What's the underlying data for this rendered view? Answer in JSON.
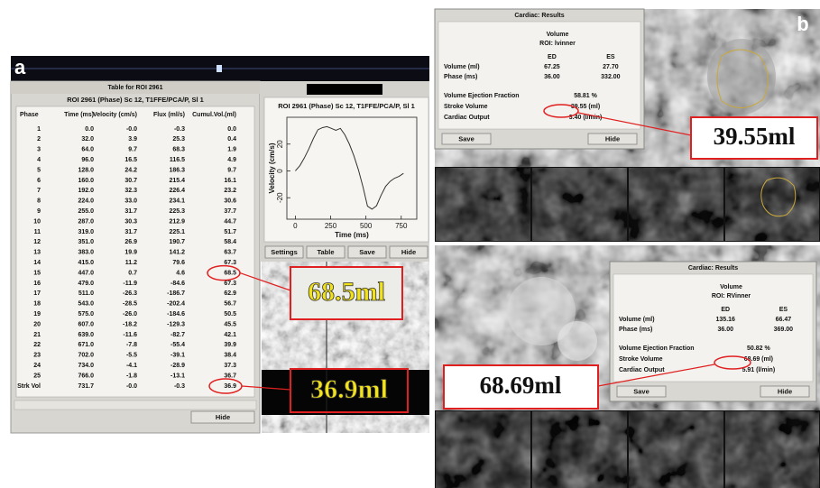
{
  "panel_a": {
    "label": "a",
    "table": {
      "title": "Table for ROI 2961",
      "subtitle": "ROI 2961 (Phase) Sc 12, T1FFE/PCA/P, Sl 1",
      "columns": [
        "Phase",
        "Time (ms)",
        "Velocity (cm/s)",
        "Flux (ml/s)",
        "Cumul.Vol.(ml)"
      ],
      "rows": [
        [
          "1",
          "0.0",
          "-0.0",
          "-0.3",
          "0.0"
        ],
        [
          "2",
          "32.0",
          "3.9",
          "25.3",
          "0.4"
        ],
        [
          "3",
          "64.0",
          "9.7",
          "68.3",
          "1.9"
        ],
        [
          "4",
          "96.0",
          "16.5",
          "116.5",
          "4.9"
        ],
        [
          "5",
          "128.0",
          "24.2",
          "186.3",
          "9.7"
        ],
        [
          "6",
          "160.0",
          "30.7",
          "215.4",
          "16.1"
        ],
        [
          "7",
          "192.0",
          "32.3",
          "226.4",
          "23.2"
        ],
        [
          "8",
          "224.0",
          "33.0",
          "234.1",
          "30.6"
        ],
        [
          "9",
          "255.0",
          "31.7",
          "225.3",
          "37.7"
        ],
        [
          "10",
          "287.0",
          "30.3",
          "212.9",
          "44.7"
        ],
        [
          "11",
          "319.0",
          "31.7",
          "225.1",
          "51.7"
        ],
        [
          "12",
          "351.0",
          "26.9",
          "190.7",
          "58.4"
        ],
        [
          "13",
          "383.0",
          "19.9",
          "141.2",
          "63.7"
        ],
        [
          "14",
          "415.0",
          "11.2",
          "79.6",
          "67.3"
        ],
        [
          "15",
          "447.0",
          "0.7",
          "4.6",
          "68.5"
        ],
        [
          "16",
          "479.0",
          "-11.9",
          "-84.6",
          "67.3"
        ],
        [
          "17",
          "511.0",
          "-26.3",
          "-186.7",
          "62.9"
        ],
        [
          "18",
          "543.0",
          "-28.5",
          "-202.4",
          "56.7"
        ],
        [
          "19",
          "575.0",
          "-26.0",
          "-184.6",
          "50.5"
        ],
        [
          "20",
          "607.0",
          "-18.2",
          "-129.3",
          "45.5"
        ],
        [
          "21",
          "639.0",
          "-11.6",
          "-82.7",
          "42.1"
        ],
        [
          "22",
          "671.0",
          "-7.8",
          "-55.4",
          "39.9"
        ],
        [
          "23",
          "702.0",
          "-5.5",
          "-39.1",
          "38.4"
        ],
        [
          "24",
          "734.0",
          "-4.1",
          "-28.9",
          "37.3"
        ],
        [
          "25",
          "766.0",
          "-1.8",
          "-13.1",
          "36.7"
        ],
        [
          "Strk Vol",
          "731.7",
          "-0.0",
          "-0.3",
          "36.9"
        ]
      ],
      "button": "Hide"
    },
    "plot": {
      "title": "ROI 2961 (Phase) Sc 12, T1FFE/PCA/P, Sl 1",
      "xlabel": "Time (ms)",
      "ylabel": "Velocity (cm/s)",
      "xlim": [
        -60,
        860
      ],
      "ylim": [
        -36,
        40
      ],
      "xticks": [
        0,
        250,
        500,
        750
      ],
      "yticks": [
        -20,
        0,
        20
      ]
    },
    "plot_buttons": [
      "Settings",
      "Table",
      "Save",
      "Hide"
    ],
    "callouts": [
      "68.5ml",
      "36.9ml"
    ]
  },
  "panel_b": {
    "label": "b",
    "top": {
      "title": "Cardiac: Results",
      "heading": "Volume",
      "roi": "ROI: lvinner",
      "columns": [
        "ED",
        "ES"
      ],
      "rows": [
        [
          "Volume (ml)",
          "67.25",
          "27.70"
        ],
        [
          "Phase (ms)",
          "36.00",
          "332.00"
        ]
      ],
      "results": [
        [
          "Volume Ejection Fraction",
          "58.81 %"
        ],
        [
          "Stroke Volume",
          "39.55 (ml)"
        ],
        [
          "Cardiac Output",
          "3.40 (l/min)"
        ]
      ],
      "buttons": [
        "Save",
        "Hide"
      ],
      "callout": "39.55ml"
    },
    "bottom": {
      "title": "Cardiac: Results",
      "heading": "Volume",
      "roi": "ROI: RVinner",
      "columns": [
        "ED",
        "ES"
      ],
      "rows": [
        [
          "Volume (ml)",
          "135.16",
          "66.47"
        ],
        [
          "Phase (ms)",
          "36.00",
          "369.00"
        ]
      ],
      "results": [
        [
          "Volume Ejection Fraction",
          "50.82 %"
        ],
        [
          "Stroke Volume",
          "68.69 (ml)"
        ],
        [
          "Cardiac Output",
          "5.91 (l/min)"
        ]
      ],
      "buttons": [
        "Save",
        "Hide"
      ],
      "callout": "68.69ml"
    }
  }
}
